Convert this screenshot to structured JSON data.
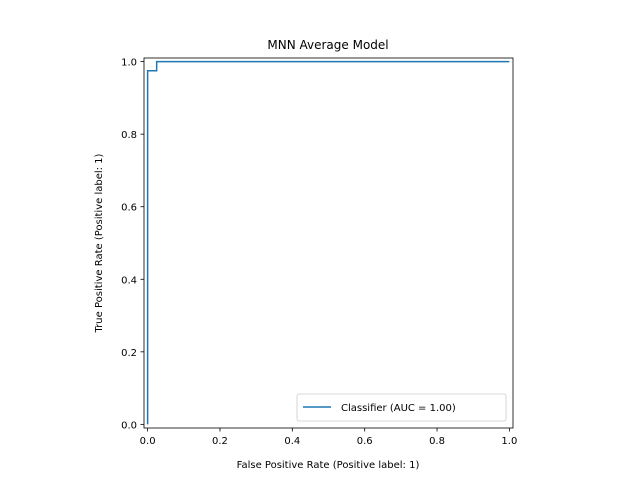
{
  "chart_data": {
    "type": "line",
    "title": "MNN Average Model",
    "xlabel": "False Positive Rate (Positive label: 1)",
    "ylabel": "True Positive Rate (Positive label: 1)",
    "xlim": [
      -0.01,
      1.01
    ],
    "ylim": [
      -0.01,
      1.01
    ],
    "x_ticks": [
      "0.0",
      "0.2",
      "0.4",
      "0.6",
      "0.8",
      "1.0"
    ],
    "y_ticks": [
      "0.0",
      "0.2",
      "0.4",
      "0.6",
      "0.8",
      "1.0"
    ],
    "grid": false,
    "legend_position": "lower-right",
    "series": [
      {
        "name": "Classifier (AUC = 1.00)",
        "color": "#1f77b4",
        "x": [
          0.0,
          0.0,
          0.0,
          0.025,
          0.025,
          1.0
        ],
        "y": [
          0.0,
          0.975,
          0.975,
          0.975,
          1.0,
          1.0
        ]
      }
    ]
  }
}
